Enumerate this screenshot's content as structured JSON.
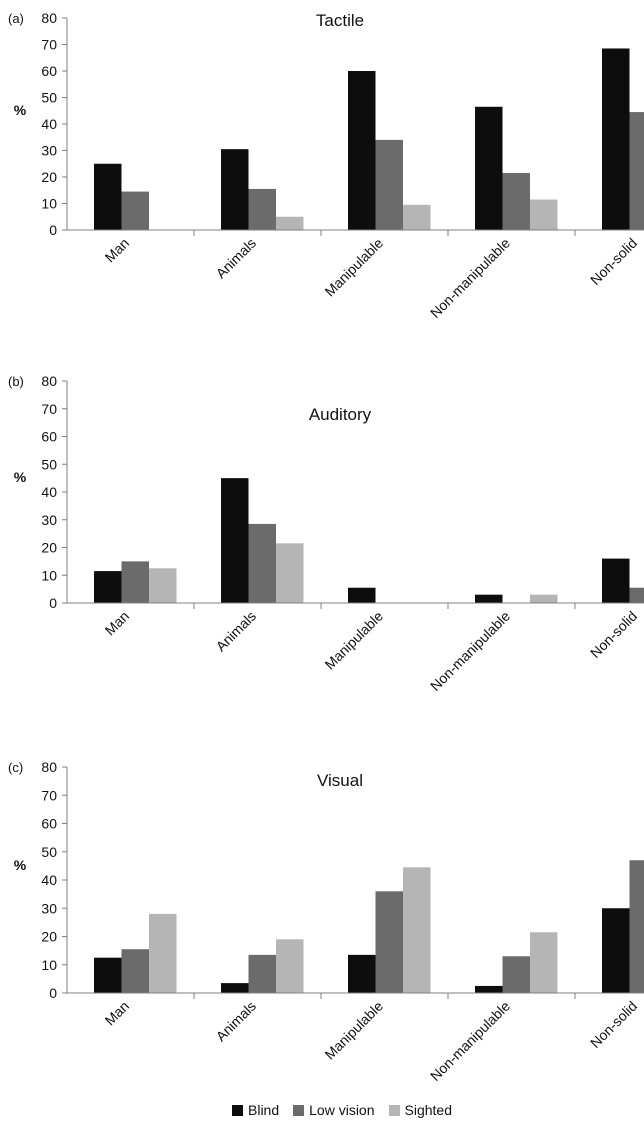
{
  "chart_data": [
    {
      "type": "bar",
      "panel": "(a)",
      "title": "Tactile",
      "ylabel": "%",
      "ylim": [
        0,
        80
      ],
      "yticks": [
        0,
        10,
        20,
        30,
        40,
        50,
        60,
        70,
        80
      ],
      "categories": [
        "Man",
        "Animals",
        "Manipulable",
        "Non-manipulable",
        "Non-solid"
      ],
      "series": [
        {
          "name": "Blind",
          "values": [
            25,
            30.5,
            60,
            46.5,
            68.5
          ]
        },
        {
          "name": "Low vision",
          "values": [
            14.5,
            15.5,
            34,
            21.5,
            44.5
          ]
        },
        {
          "name": "Sighted",
          "values": [
            0,
            5,
            9.5,
            11.5,
            0
          ]
        }
      ]
    },
    {
      "type": "bar",
      "panel": "(b)",
      "title": "Auditory",
      "ylabel": "%",
      "ylim": [
        0,
        80
      ],
      "yticks": [
        0,
        10,
        20,
        30,
        40,
        50,
        60,
        70,
        80
      ],
      "categories": [
        "Man",
        "Animals",
        "Manipulable",
        "Non-manipulable",
        "Non-solid"
      ],
      "series": [
        {
          "name": "Blind",
          "values": [
            11.5,
            45,
            5.5,
            3,
            16
          ]
        },
        {
          "name": "Low vision",
          "values": [
            15,
            28.5,
            0,
            0,
            5.5
          ]
        },
        {
          "name": "Sighted",
          "values": [
            12.5,
            21.5,
            0,
            3,
            0
          ]
        }
      ]
    },
    {
      "type": "bar",
      "panel": "(c)",
      "title": "Visual",
      "ylabel": "%",
      "ylim": [
        0,
        80
      ],
      "yticks": [
        0,
        10,
        20,
        30,
        40,
        50,
        60,
        70,
        80
      ],
      "categories": [
        "Man",
        "Animals",
        "Manipulable",
        "Non-manipulable",
        "Non-solid"
      ],
      "series": [
        {
          "name": "Blind",
          "values": [
            12.5,
            3.5,
            13.5,
            2.5,
            30
          ]
        },
        {
          "name": "Low vision",
          "values": [
            15.5,
            13.5,
            36,
            13,
            47
          ]
        },
        {
          "name": "Sighted",
          "values": [
            28,
            19,
            44.5,
            21.5,
            0
          ]
        }
      ]
    }
  ],
  "legend": [
    {
      "label": "Blind",
      "color": "#0d0d0d"
    },
    {
      "label": "Low vision",
      "color": "#6b6b6b"
    },
    {
      "label": "Sighted",
      "color": "#b5b5b5"
    }
  ]
}
